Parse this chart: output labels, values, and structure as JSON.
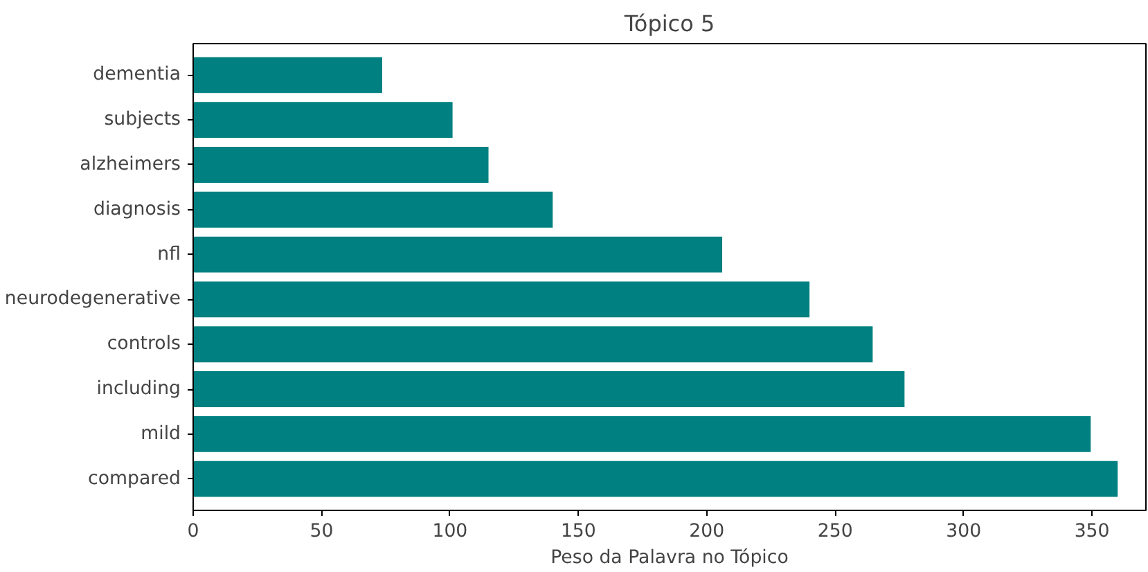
{
  "chart_data": {
    "type": "bar",
    "orientation": "horizontal",
    "title": "Tópico 5",
    "xlabel": "Peso da Palavra no Tópico",
    "categories": [
      "dementia",
      "subjects",
      "alzheimers",
      "diagnosis",
      "nfl",
      "neurodegenerative",
      "controls",
      "including",
      "mild",
      "compared"
    ],
    "values": [
      73.6,
      101,
      115,
      140,
      206,
      240,
      264.6,
      277,
      349.5,
      360
    ],
    "color": "#008080",
    "xlim": [
      0,
      371
    ],
    "xticks": [
      0,
      50,
      100,
      150,
      200,
      250,
      300,
      350
    ],
    "grid": false
  }
}
